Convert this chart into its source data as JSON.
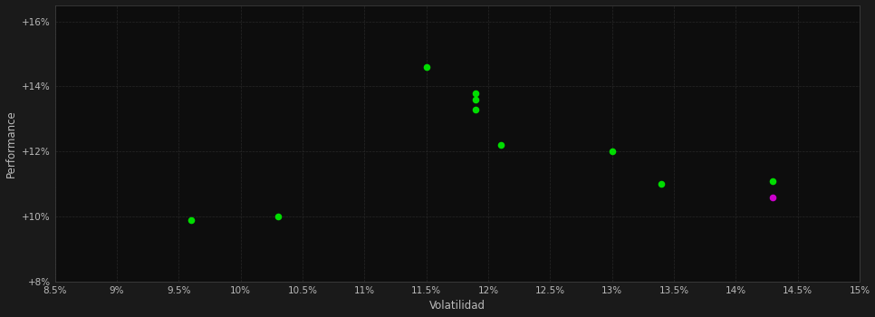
{
  "xlabel": "Volatilidad",
  "ylabel": "Performance",
  "background_color": "#1a1a1a",
  "plot_bg_color": "#0d0d0d",
  "grid_color": "#333333",
  "text_color": "#bbbbbb",
  "xlim": [
    0.085,
    0.15
  ],
  "ylim": [
    0.08,
    0.165
  ],
  "xticks": [
    0.085,
    0.09,
    0.095,
    0.1,
    0.105,
    0.11,
    0.115,
    0.12,
    0.125,
    0.13,
    0.135,
    0.14,
    0.145,
    0.15
  ],
  "yticks": [
    0.08,
    0.1,
    0.12,
    0.14,
    0.16
  ],
  "green_points": [
    [
      0.096,
      0.099
    ],
    [
      0.103,
      0.1
    ],
    [
      0.115,
      0.146
    ],
    [
      0.119,
      0.138
    ],
    [
      0.119,
      0.136
    ],
    [
      0.119,
      0.133
    ],
    [
      0.121,
      0.122
    ],
    [
      0.13,
      0.12
    ],
    [
      0.134,
      0.11
    ],
    [
      0.143,
      0.111
    ]
  ],
  "magenta_points": [
    [
      0.143,
      0.106
    ]
  ],
  "point_size": 30,
  "green_color": "#00dd00",
  "magenta_color": "#cc00cc"
}
